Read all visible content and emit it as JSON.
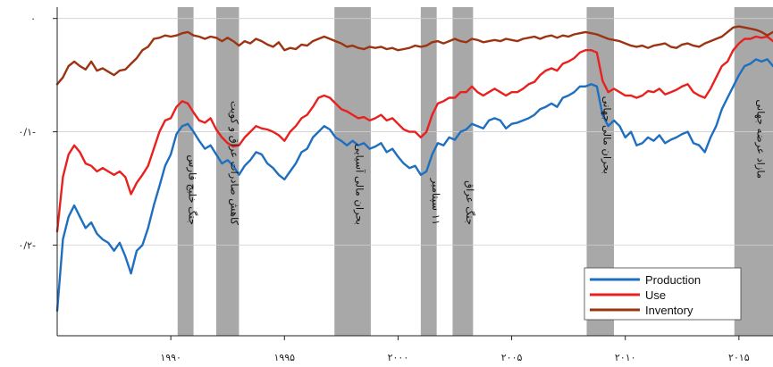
{
  "chart_data": {
    "type": "line",
    "title": "",
    "xlabel": "",
    "ylabel": "",
    "xlim": [
      1985,
      2016.5
    ],
    "ylim": [
      -0.28,
      0.01
    ],
    "grid": "horizontal",
    "legend_position": "bottom-right",
    "x_ticks": [
      {
        "value": 1990,
        "label": "۱۹۹۰"
      },
      {
        "value": 1995,
        "label": "۱۹۹۵"
      },
      {
        "value": 2000,
        "label": "۲۰۰۰"
      },
      {
        "value": 2005,
        "label": "۲۰۰۵"
      },
      {
        "value": 2010,
        "label": "۲۰۱۰"
      },
      {
        "value": 2015,
        "label": "۲۰۱۵"
      }
    ],
    "y_ticks": [
      {
        "value": 0,
        "label": "۰"
      },
      {
        "value": -0.1,
        "label": "۰/۱-"
      },
      {
        "value": -0.2,
        "label": "۰/۲-"
      }
    ],
    "shaded_periods": [
      {
        "start": 1990.3,
        "end": 1991.0,
        "label": "جنگ خلیج فارس"
      },
      {
        "start": 1992.0,
        "end": 1993.0,
        "label": "کاهش صادرات عراق و کویت"
      },
      {
        "start": 1997.2,
        "end": 1998.8,
        "label": "بحران مالی آسیایی"
      },
      {
        "start": 2001.0,
        "end": 2001.7,
        "label": "۱۱ سپتامبر"
      },
      {
        "start": 2002.4,
        "end": 2003.3,
        "label": "جنگ عراق"
      },
      {
        "start": 2008.3,
        "end": 2009.5,
        "label": "بحران مالی جهانی"
      },
      {
        "start": 2014.8,
        "end": 2016.5,
        "label": "مازاد عرضه جهانی"
      }
    ],
    "series": [
      {
        "name": "Production",
        "color": "#1f6fc0",
        "x": [
          1985,
          1985.25,
          1985.5,
          1985.75,
          1986,
          1986.25,
          1986.5,
          1986.75,
          1987,
          1987.25,
          1987.5,
          1987.75,
          1988,
          1988.25,
          1988.5,
          1988.75,
          1989,
          1989.25,
          1989.5,
          1989.75,
          1990,
          1990.25,
          1990.5,
          1990.75,
          1991,
          1991.25,
          1991.5,
          1991.75,
          1992,
          1992.25,
          1992.5,
          1992.75,
          1993,
          1993.25,
          1993.5,
          1993.75,
          1994,
          1994.25,
          1994.5,
          1994.75,
          1995,
          1995.25,
          1995.5,
          1995.75,
          1996,
          1996.25,
          1996.5,
          1996.75,
          1997,
          1997.25,
          1997.5,
          1997.75,
          1998,
          1998.25,
          1998.5,
          1998.75,
          1999,
          1999.25,
          1999.5,
          1999.75,
          2000,
          2000.25,
          2000.5,
          2000.75,
          2001,
          2001.25,
          2001.5,
          2001.75,
          2002,
          2002.25,
          2002.5,
          2002.75,
          2003,
          2003.25,
          2003.5,
          2003.75,
          2004,
          2004.25,
          2004.5,
          2004.75,
          2005,
          2005.25,
          2005.5,
          2005.75,
          2006,
          2006.25,
          2006.5,
          2006.75,
          2007,
          2007.25,
          2007.5,
          2007.75,
          2008,
          2008.25,
          2008.5,
          2008.75,
          2009,
          2009.25,
          2009.5,
          2009.75,
          2010,
          2010.25,
          2010.5,
          2010.75,
          2011,
          2011.25,
          2011.5,
          2011.75,
          2012,
          2012.25,
          2012.5,
          2012.75,
          2013,
          2013.25,
          2013.5,
          2013.75,
          2014,
          2014.25,
          2014.5,
          2014.75,
          2015,
          2015.25,
          2015.5,
          2015.75,
          2016,
          2016.25,
          2016.5
        ],
        "y": [
          -0.258,
          -0.195,
          -0.175,
          -0.165,
          -0.175,
          -0.185,
          -0.18,
          -0.19,
          -0.195,
          -0.198,
          -0.205,
          -0.198,
          -0.21,
          -0.225,
          -0.205,
          -0.2,
          -0.185,
          -0.165,
          -0.148,
          -0.13,
          -0.12,
          -0.102,
          -0.095,
          -0.093,
          -0.1,
          -0.108,
          -0.115,
          -0.112,
          -0.12,
          -0.128,
          -0.125,
          -0.13,
          -0.138,
          -0.13,
          -0.125,
          -0.118,
          -0.12,
          -0.128,
          -0.132,
          -0.138,
          -0.142,
          -0.135,
          -0.128,
          -0.118,
          -0.115,
          -0.105,
          -0.1,
          -0.095,
          -0.098,
          -0.105,
          -0.108,
          -0.112,
          -0.108,
          -0.112,
          -0.11,
          -0.115,
          -0.113,
          -0.11,
          -0.118,
          -0.115,
          -0.122,
          -0.128,
          -0.132,
          -0.13,
          -0.138,
          -0.135,
          -0.12,
          -0.11,
          -0.112,
          -0.105,
          -0.107,
          -0.1,
          -0.098,
          -0.093,
          -0.095,
          -0.097,
          -0.09,
          -0.088,
          -0.09,
          -0.097,
          -0.093,
          -0.092,
          -0.09,
          -0.088,
          -0.085,
          -0.08,
          -0.078,
          -0.075,
          -0.078,
          -0.07,
          -0.068,
          -0.065,
          -0.06,
          -0.06,
          -0.058,
          -0.06,
          -0.085,
          -0.095,
          -0.09,
          -0.095,
          -0.105,
          -0.1,
          -0.112,
          -0.11,
          -0.105,
          -0.108,
          -0.103,
          -0.11,
          -0.107,
          -0.105,
          -0.102,
          -0.1,
          -0.11,
          -0.112,
          -0.118,
          -0.105,
          -0.095,
          -0.08,
          -0.07,
          -0.06,
          -0.05,
          -0.042,
          -0.04,
          -0.036,
          -0.038,
          -0.036,
          -0.042
        ]
      },
      {
        "name": "Use",
        "color": "#e8211f",
        "x": [
          1985,
          1985.25,
          1985.5,
          1985.75,
          1986,
          1986.25,
          1986.5,
          1986.75,
          1987,
          1987.25,
          1987.5,
          1987.75,
          1988,
          1988.25,
          1988.5,
          1988.75,
          1989,
          1989.25,
          1989.5,
          1989.75,
          1990,
          1990.25,
          1990.5,
          1990.75,
          1991,
          1991.25,
          1991.5,
          1991.75,
          1992,
          1992.25,
          1992.5,
          1992.75,
          1993,
          1993.25,
          1993.5,
          1993.75,
          1994,
          1994.25,
          1994.5,
          1994.75,
          1995,
          1995.25,
          1995.5,
          1995.75,
          1996,
          1996.25,
          1996.5,
          1996.75,
          1997,
          1997.25,
          1997.5,
          1997.75,
          1998,
          1998.25,
          1998.5,
          1998.75,
          1999,
          1999.25,
          1999.5,
          1999.75,
          2000,
          2000.25,
          2000.5,
          2000.75,
          2001,
          2001.25,
          2001.5,
          2001.75,
          2002,
          2002.25,
          2002.5,
          2002.75,
          2003,
          2003.25,
          2003.5,
          2003.75,
          2004,
          2004.25,
          2004.5,
          2004.75,
          2005,
          2005.25,
          2005.5,
          2005.75,
          2006,
          2006.25,
          2006.5,
          2006.75,
          2007,
          2007.25,
          2007.5,
          2007.75,
          2008,
          2008.25,
          2008.5,
          2008.75,
          2009,
          2009.25,
          2009.5,
          2009.75,
          2010,
          2010.25,
          2010.5,
          2010.75,
          2011,
          2011.25,
          2011.5,
          2011.75,
          2012,
          2012.25,
          2012.5,
          2012.75,
          2013,
          2013.25,
          2013.5,
          2013.75,
          2014,
          2014.25,
          2014.5,
          2014.75,
          2015,
          2015.25,
          2015.5,
          2015.75,
          2016,
          2016.25,
          2016.5
        ],
        "y": [
          -0.188,
          -0.14,
          -0.12,
          -0.112,
          -0.118,
          -0.128,
          -0.13,
          -0.135,
          -0.132,
          -0.135,
          -0.138,
          -0.135,
          -0.14,
          -0.155,
          -0.145,
          -0.138,
          -0.13,
          -0.115,
          -0.1,
          -0.09,
          -0.088,
          -0.078,
          -0.073,
          -0.075,
          -0.083,
          -0.09,
          -0.092,
          -0.088,
          -0.098,
          -0.105,
          -0.11,
          -0.113,
          -0.112,
          -0.105,
          -0.1,
          -0.095,
          -0.097,
          -0.098,
          -0.1,
          -0.103,
          -0.108,
          -0.1,
          -0.095,
          -0.088,
          -0.085,
          -0.078,
          -0.07,
          -0.068,
          -0.07,
          -0.075,
          -0.08,
          -0.082,
          -0.085,
          -0.088,
          -0.087,
          -0.09,
          -0.088,
          -0.085,
          -0.09,
          -0.088,
          -0.093,
          -0.098,
          -0.1,
          -0.1,
          -0.105,
          -0.1,
          -0.085,
          -0.075,
          -0.073,
          -0.07,
          -0.07,
          -0.065,
          -0.065,
          -0.06,
          -0.065,
          -0.068,
          -0.065,
          -0.062,
          -0.065,
          -0.068,
          -0.065,
          -0.065,
          -0.062,
          -0.058,
          -0.056,
          -0.05,
          -0.046,
          -0.044,
          -0.046,
          -0.04,
          -0.038,
          -0.035,
          -0.03,
          -0.028,
          -0.028,
          -0.03,
          -0.055,
          -0.065,
          -0.062,
          -0.065,
          -0.068,
          -0.068,
          -0.07,
          -0.068,
          -0.064,
          -0.065,
          -0.062,
          -0.067,
          -0.065,
          -0.063,
          -0.06,
          -0.058,
          -0.065,
          -0.068,
          -0.07,
          -0.062,
          -0.052,
          -0.042,
          -0.038,
          -0.028,
          -0.022,
          -0.018,
          -0.018,
          -0.016,
          -0.017,
          -0.016,
          -0.02
        ]
      },
      {
        "name": "Inventory",
        "color": "#9c3412",
        "x": [
          1985,
          1985.25,
          1985.5,
          1985.75,
          1986,
          1986.25,
          1986.5,
          1986.75,
          1987,
          1987.25,
          1987.5,
          1987.75,
          1988,
          1988.25,
          1988.5,
          1988.75,
          1989,
          1989.25,
          1989.5,
          1989.75,
          1990,
          1990.25,
          1990.5,
          1990.75,
          1991,
          1991.25,
          1991.5,
          1991.75,
          1992,
          1992.25,
          1992.5,
          1992.75,
          1993,
          1993.25,
          1993.5,
          1993.75,
          1994,
          1994.25,
          1994.5,
          1994.75,
          1995,
          1995.25,
          1995.5,
          1995.75,
          1996,
          1996.25,
          1996.5,
          1996.75,
          1997,
          1997.25,
          1997.5,
          1997.75,
          1998,
          1998.25,
          1998.5,
          1998.75,
          1999,
          1999.25,
          1999.5,
          1999.75,
          2000,
          2000.25,
          2000.5,
          2000.75,
          2001,
          2001.25,
          2001.5,
          2001.75,
          2002,
          2002.25,
          2002.5,
          2002.75,
          2003,
          2003.25,
          2003.5,
          2003.75,
          2004,
          2004.25,
          2004.5,
          2004.75,
          2005,
          2005.25,
          2005.5,
          2005.75,
          2006,
          2006.25,
          2006.5,
          2006.75,
          2007,
          2007.25,
          2007.5,
          2007.75,
          2008,
          2008.25,
          2008.5,
          2008.75,
          2009,
          2009.25,
          2009.5,
          2009.75,
          2010,
          2010.25,
          2010.5,
          2010.75,
          2011,
          2011.25,
          2011.5,
          2011.75,
          2012,
          2012.25,
          2012.5,
          2012.75,
          2013,
          2013.25,
          2013.5,
          2013.75,
          2014,
          2014.25,
          2014.5,
          2014.75,
          2015,
          2015.25,
          2015.5,
          2015.75,
          2016,
          2016.25,
          2016.5
        ],
        "y": [
          -0.058,
          -0.052,
          -0.042,
          -0.038,
          -0.042,
          -0.045,
          -0.038,
          -0.046,
          -0.044,
          -0.047,
          -0.05,
          -0.046,
          -0.045,
          -0.04,
          -0.035,
          -0.028,
          -0.025,
          -0.018,
          -0.017,
          -0.015,
          -0.016,
          -0.015,
          -0.013,
          -0.012,
          -0.015,
          -0.016,
          -0.018,
          -0.016,
          -0.017,
          -0.02,
          -0.017,
          -0.02,
          -0.024,
          -0.02,
          -0.022,
          -0.018,
          -0.02,
          -0.023,
          -0.025,
          -0.021,
          -0.028,
          -0.026,
          -0.027,
          -0.023,
          -0.024,
          -0.02,
          -0.018,
          -0.016,
          -0.018,
          -0.02,
          -0.022,
          -0.025,
          -0.024,
          -0.026,
          -0.027,
          -0.025,
          -0.026,
          -0.025,
          -0.027,
          -0.026,
          -0.028,
          -0.027,
          -0.026,
          -0.024,
          -0.025,
          -0.024,
          -0.021,
          -0.02,
          -0.022,
          -0.02,
          -0.018,
          -0.02,
          -0.021,
          -0.018,
          -0.019,
          -0.021,
          -0.02,
          -0.019,
          -0.02,
          -0.018,
          -0.019,
          -0.02,
          -0.018,
          -0.017,
          -0.016,
          -0.018,
          -0.016,
          -0.015,
          -0.017,
          -0.015,
          -0.016,
          -0.014,
          -0.013,
          -0.012,
          -0.013,
          -0.014,
          -0.016,
          -0.018,
          -0.019,
          -0.02,
          -0.022,
          -0.024,
          -0.025,
          -0.024,
          -0.026,
          -0.024,
          -0.023,
          -0.022,
          -0.025,
          -0.026,
          -0.023,
          -0.022,
          -0.024,
          -0.025,
          -0.022,
          -0.02,
          -0.018,
          -0.016,
          -0.012,
          -0.008,
          -0.007,
          -0.008,
          -0.009,
          -0.01,
          -0.012,
          -0.015,
          -0.012
        ]
      }
    ]
  }
}
